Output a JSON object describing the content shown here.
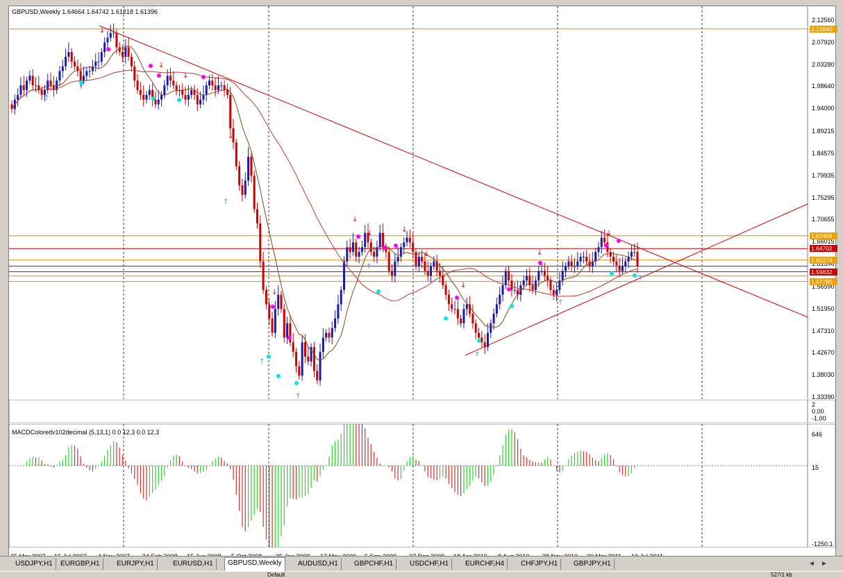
{
  "price_panel": {
    "title": "GBPUSD,Weekly  1.64664 1.64742 1.61218 1.61396",
    "axis_ticks": [
      "2.12560",
      "2.07920",
      "2.03280",
      "1.98640",
      "1.94000",
      "1.89215",
      "1.84575",
      "1.79935",
      "1.75295",
      "1.70655",
      "1.66015",
      "1.61396",
      "1.56590",
      "1.51950",
      "1.47310",
      "1.42670",
      "1.38030",
      "1.33390"
    ],
    "axis_tick_values": [
      2.1256,
      2.0792,
      2.0328,
      1.9864,
      1.94,
      1.89215,
      1.84575,
      1.79935,
      1.75295,
      1.70655,
      1.66015,
      1.61396,
      1.5659,
      1.5195,
      1.4731,
      1.4267,
      1.3803,
      1.3339
    ],
    "price_tags": [
      {
        "label": "2.10840",
        "value": 2.1084,
        "bg": "#f0a000",
        "fg": "#ffffff"
      },
      {
        "label": "1.67404",
        "value": 1.67404,
        "bg": "#f0a000",
        "fg": "#ffffff"
      },
      {
        "label": "1.64702",
        "value": 1.64702,
        "bg": "#cc0000",
        "fg": "#ffffff"
      },
      {
        "label": "1.62274",
        "value": 1.62274,
        "bg": "#f0a000",
        "fg": "#ffffff"
      },
      {
        "label": "1.59832",
        "value": 1.59832,
        "bg": "#cc0000",
        "fg": "#ffffff"
      },
      {
        "label": "1.57785",
        "value": 1.57785,
        "bg": "#f0a000",
        "fg": "#ffffff"
      }
    ],
    "horizontal_levels": [
      {
        "value": 2.1084,
        "color": "#e08a00"
      },
      {
        "value": 1.67404,
        "color": "#e08a00"
      },
      {
        "value": 1.64702,
        "color": "#cc0000"
      },
      {
        "value": 1.62274,
        "color": "#e08a00"
      },
      {
        "value": 1.61,
        "color": "#cc0000"
      },
      {
        "value": 1.59832,
        "color": "#cc0000"
      },
      {
        "value": 1.5895,
        "color": "#e08a00"
      },
      {
        "value": 1.57785,
        "color": "#e08a00"
      }
    ]
  },
  "oscillator_panel": {
    "ticks": [
      "2",
      "0.00",
      "-1.00"
    ]
  },
  "macd_panel": {
    "title": "MACDColoredv102decimal (5,13,1) 0.0 12.3 0.0 12.3",
    "ticks": [
      "646",
      "15",
      "-1250.1"
    ]
  },
  "date_labels": [
    "25 Mar 2007",
    "15 Jul 2007",
    "4 Nov 2007",
    "24 Feb 2008",
    "15 Jun 2008",
    "5 Oct 2008",
    "25 Jan 2009",
    "17 May 2009",
    "6 Sep 2009",
    "27 Dec 2009",
    "18 Apr 2010",
    "8 Aug 2010",
    "28 Nov 2010",
    "20 Mar 2011",
    "10 Jul 2011"
  ],
  "tabs": [
    {
      "label": "USDJPY,H1",
      "active": false
    },
    {
      "label": "EURGBP,H1",
      "active": false
    },
    {
      "label": "EURJPY,H1",
      "active": false
    },
    {
      "label": "EURUSD,H1",
      "active": false
    },
    {
      "label": "GBPUSD,Weekly",
      "active": true
    },
    {
      "label": "AUDUSD,H1",
      "active": false
    },
    {
      "label": "GBPCHF,H1",
      "active": false
    },
    {
      "label": "USDCHF,H1",
      "active": false
    },
    {
      "label": "EURCHF,H4",
      "active": false
    },
    {
      "label": "CHFJPY,H1",
      "active": false
    },
    {
      "label": "GBPJPY,H1",
      "active": false
    }
  ],
  "nav": {
    "left": "◄",
    "right": "►"
  },
  "status": {
    "left": "Default",
    "right": "527/1 kb"
  },
  "colors": {
    "bull": "#1a1aa6",
    "bear": "#cc0000",
    "ma_slow": "#c0392b",
    "ma_fast": "#8b4513",
    "trend": "#cc0000",
    "up_marker": "#3399ff",
    "magenta": "#ff00ff",
    "cyan": "#00e5e5",
    "macd_up": "#33cc33",
    "macd_down": "#cc3333"
  },
  "chart_data": {
    "type": "candlestick",
    "start": "2007-03-11",
    "weekly_closes": [
      1.94,
      1.96,
      1.97,
      1.99,
      1.98,
      2.0,
      2.01,
      1.99,
      1.99,
      1.98,
      1.97,
      1.98,
      2.0,
      1.99,
      1.98,
      2.0,
      2.02,
      2.03,
      2.05,
      2.06,
      2.04,
      2.03,
      2.02,
      2.0,
      2.01,
      2.02,
      2.02,
      2.03,
      2.04,
      2.04,
      2.06,
      2.08,
      2.09,
      2.1,
      2.1,
      2.07,
      2.06,
      2.05,
      2.07,
      2.05,
      2.03,
      2.0,
      1.98,
      1.97,
      1.96,
      1.97,
      1.98,
      1.96,
      1.95,
      1.96,
      1.97,
      1.99,
      2.01,
      2.0,
      1.99,
      1.98,
      1.98,
      1.97,
      1.96,
      1.97,
      1.98,
      1.97,
      1.95,
      1.96,
      1.97,
      1.99,
      2.0,
      1.99,
      1.98,
      1.99,
      1.99,
      1.98,
      1.97,
      1.9,
      1.87,
      1.82,
      1.78,
      1.76,
      1.79,
      1.84,
      1.8,
      1.73,
      1.7,
      1.62,
      1.56,
      1.53,
      1.5,
      1.47,
      1.52,
      1.55,
      1.52,
      1.46,
      1.49,
      1.45,
      1.43,
      1.4,
      1.38,
      1.45,
      1.42,
      1.41,
      1.44,
      1.39,
      1.37,
      1.43,
      1.46,
      1.47,
      1.46,
      1.48,
      1.5,
      1.53,
      1.56,
      1.62,
      1.65,
      1.64,
      1.66,
      1.63,
      1.64,
      1.65,
      1.68,
      1.66,
      1.64,
      1.63,
      1.65,
      1.68,
      1.65,
      1.64,
      1.6,
      1.59,
      1.62,
      1.63,
      1.65,
      1.66,
      1.67,
      1.66,
      1.64,
      1.61,
      1.63,
      1.62,
      1.6,
      1.59,
      1.61,
      1.62,
      1.6,
      1.59,
      1.57,
      1.55,
      1.53,
      1.52,
      1.52,
      1.5,
      1.49,
      1.52,
      1.53,
      1.51,
      1.49,
      1.47,
      1.46,
      1.45,
      1.44,
      1.47,
      1.49,
      1.51,
      1.53,
      1.55,
      1.57,
      1.6,
      1.58,
      1.56,
      1.56,
      1.55,
      1.57,
      1.58,
      1.59,
      1.57,
      1.56,
      1.58,
      1.6,
      1.6,
      1.59,
      1.58,
      1.56,
      1.55,
      1.56,
      1.58,
      1.6,
      1.61,
      1.62,
      1.61,
      1.61,
      1.62,
      1.63,
      1.63,
      1.62,
      1.61,
      1.62,
      1.64,
      1.65,
      1.67,
      1.66,
      1.64,
      1.63,
      1.62,
      1.61,
      1.6,
      1.61,
      1.62,
      1.63,
      1.64,
      1.64,
      1.61
    ]
  }
}
